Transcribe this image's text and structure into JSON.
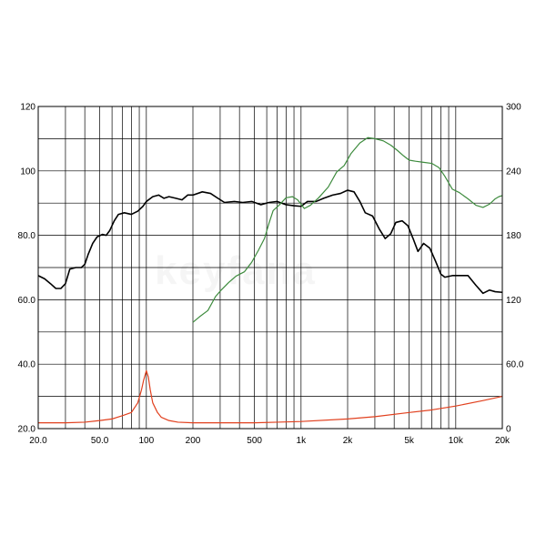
{
  "chart_data": {
    "type": "line",
    "x_scale": "log",
    "xlim": [
      20,
      20000
    ],
    "y_left_lim": [
      20,
      120
    ],
    "y_right_lim": [
      0,
      300
    ],
    "grid": true,
    "x_tick_labels": [
      {
        "v": 20,
        "label": "20.0"
      },
      {
        "v": 50,
        "label": "50.0"
      },
      {
        "v": 100,
        "label": "100"
      },
      {
        "v": 200,
        "label": "200"
      },
      {
        "v": 500,
        "label": "500"
      },
      {
        "v": 1000,
        "label": "1k"
      },
      {
        "v": 2000,
        "label": "2k"
      },
      {
        "v": 5000,
        "label": "5k"
      },
      {
        "v": 10000,
        "label": "10k"
      },
      {
        "v": 20000,
        "label": "20k"
      }
    ],
    "y_left_tick_labels": [
      {
        "v": 120,
        "label": "120"
      },
      {
        "v": 100,
        "label": "100"
      },
      {
        "v": 80,
        "label": "80.0"
      },
      {
        "v": 60,
        "label": "60.0"
      },
      {
        "v": 40,
        "label": "40.0"
      },
      {
        "v": 20,
        "label": "20.0"
      }
    ],
    "y_right_tick_labels": [
      {
        "v": 300,
        "label": "300"
      },
      {
        "v": 240,
        "label": "240"
      },
      {
        "v": 180,
        "label": "180"
      },
      {
        "v": 120,
        "label": "120"
      },
      {
        "v": 60,
        "label": "60.0"
      },
      {
        "v": 0,
        "label": "0"
      }
    ],
    "watermark": "keyfana",
    "series": [
      {
        "color": "#000000",
        "axis": "left",
        "points": [
          [
            20,
            67.5
          ],
          [
            22,
            66.5
          ],
          [
            24,
            65
          ],
          [
            26,
            63.5
          ],
          [
            28,
            63.5
          ],
          [
            30,
            65
          ],
          [
            32,
            69.5
          ],
          [
            35,
            70
          ],
          [
            38,
            70
          ],
          [
            40,
            71
          ],
          [
            42,
            74
          ],
          [
            45,
            77.5
          ],
          [
            48,
            79.5
          ],
          [
            52,
            80.3
          ],
          [
            55,
            80
          ],
          [
            58,
            81.5
          ],
          [
            62,
            84.5
          ],
          [
            66,
            86.5
          ],
          [
            72,
            87
          ],
          [
            80,
            86.5
          ],
          [
            88,
            87.5
          ],
          [
            95,
            89
          ],
          [
            100,
            90.5
          ],
          [
            110,
            92
          ],
          [
            120,
            92.5
          ],
          [
            130,
            91.5
          ],
          [
            140,
            92
          ],
          [
            155,
            91.5
          ],
          [
            170,
            91
          ],
          [
            185,
            92.5
          ],
          [
            200,
            92.5
          ],
          [
            230,
            93.5
          ],
          [
            260,
            93
          ],
          [
            290,
            91.5
          ],
          [
            320,
            90.2
          ],
          [
            370,
            90.5
          ],
          [
            420,
            90.2
          ],
          [
            480,
            90.5
          ],
          [
            550,
            89.5
          ],
          [
            620,
            90.2
          ],
          [
            700,
            90.5
          ],
          [
            800,
            89.5
          ],
          [
            900,
            89.2
          ],
          [
            1000,
            89
          ],
          [
            1100,
            90.5
          ],
          [
            1250,
            90.5
          ],
          [
            1400,
            91.5
          ],
          [
            1600,
            92.5
          ],
          [
            1800,
            93
          ],
          [
            2000,
            94
          ],
          [
            2200,
            93.5
          ],
          [
            2400,
            90.5
          ],
          [
            2600,
            87
          ],
          [
            2900,
            86
          ],
          [
            3200,
            82
          ],
          [
            3500,
            79
          ],
          [
            3800,
            80.5
          ],
          [
            4100,
            84
          ],
          [
            4500,
            84.5
          ],
          [
            4900,
            83
          ],
          [
            5300,
            79
          ],
          [
            5700,
            75
          ],
          [
            6200,
            77.5
          ],
          [
            6800,
            76
          ],
          [
            7400,
            72
          ],
          [
            8000,
            68
          ],
          [
            8500,
            67
          ],
          [
            9500,
            67.5
          ],
          [
            10500,
            67.5
          ],
          [
            12000,
            67.5
          ],
          [
            13500,
            64.5
          ],
          [
            15000,
            62
          ],
          [
            16500,
            63
          ],
          [
            18000,
            62.5
          ],
          [
            20000,
            62.3
          ]
        ]
      },
      {
        "color": "#3d8b3d",
        "axis": "right",
        "points": [
          [
            200,
            99
          ],
          [
            220,
            104
          ],
          [
            250,
            110
          ],
          [
            280,
            123
          ],
          [
            300,
            128
          ],
          [
            340,
            136
          ],
          [
            380,
            142
          ],
          [
            430,
            146
          ],
          [
            480,
            155
          ],
          [
            530,
            166
          ],
          [
            580,
            177
          ],
          [
            620,
            191
          ],
          [
            660,
            203
          ],
          [
            720,
            208
          ],
          [
            800,
            215
          ],
          [
            880,
            216
          ],
          [
            950,
            213
          ],
          [
            1000,
            209
          ],
          [
            1050,
            205
          ],
          [
            1150,
            208
          ],
          [
            1300,
            215
          ],
          [
            1500,
            225
          ],
          [
            1700,
            239
          ],
          [
            1900,
            245
          ],
          [
            2100,
            256
          ],
          [
            2400,
            266
          ],
          [
            2700,
            271
          ],
          [
            3000,
            270
          ],
          [
            3400,
            268
          ],
          [
            3800,
            264
          ],
          [
            4200,
            259
          ],
          [
            4600,
            254
          ],
          [
            5000,
            250
          ],
          [
            5500,
            249
          ],
          [
            6200,
            248
          ],
          [
            7000,
            247
          ],
          [
            7800,
            243
          ],
          [
            8500,
            235
          ],
          [
            9500,
            223
          ],
          [
            10500,
            220
          ],
          [
            12000,
            214
          ],
          [
            13500,
            208
          ],
          [
            15000,
            206
          ],
          [
            16500,
            209
          ],
          [
            18000,
            214
          ],
          [
            19000,
            216
          ],
          [
            20000,
            217
          ]
        ]
      },
      {
        "color": "#e1401e",
        "axis": "left",
        "points": [
          [
            20,
            21.8
          ],
          [
            30,
            21.8
          ],
          [
            40,
            22
          ],
          [
            50,
            22.5
          ],
          [
            60,
            23
          ],
          [
            70,
            24
          ],
          [
            80,
            25
          ],
          [
            88,
            28
          ],
          [
            93,
            32
          ],
          [
            96,
            35
          ],
          [
            100,
            38
          ],
          [
            103,
            36
          ],
          [
            106,
            32
          ],
          [
            110,
            28
          ],
          [
            118,
            25
          ],
          [
            125,
            23.5
          ],
          [
            140,
            22.5
          ],
          [
            160,
            22
          ],
          [
            200,
            21.8
          ],
          [
            300,
            21.8
          ],
          [
            500,
            21.8
          ],
          [
            700,
            22
          ],
          [
            1000,
            22.2
          ],
          [
            2000,
            23
          ],
          [
            3000,
            23.7
          ],
          [
            5000,
            25
          ],
          [
            7000,
            25.8
          ],
          [
            10000,
            27
          ],
          [
            15000,
            28.7
          ],
          [
            20000,
            30
          ]
        ]
      }
    ]
  }
}
